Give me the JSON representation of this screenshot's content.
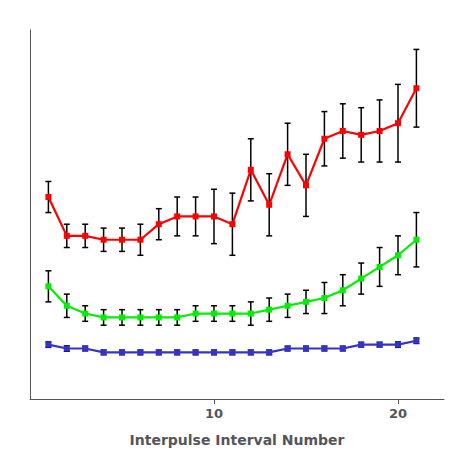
{
  "chart_data": {
    "type": "line",
    "xlabel": "Interpulse Interval Number",
    "x": [
      1,
      2,
      3,
      4,
      5,
      6,
      7,
      8,
      9,
      10,
      11,
      12,
      13,
      14,
      15,
      16,
      17,
      18,
      19,
      20,
      21
    ],
    "series": [
      {
        "color": "#ff0000",
        "values": [
          0.62,
          0.52,
          0.52,
          0.51,
          0.51,
          0.51,
          0.55,
          0.57,
          0.57,
          0.57,
          0.55,
          0.69,
          0.6,
          0.73,
          0.65,
          0.77,
          0.79,
          0.78,
          0.79,
          0.81,
          0.9
        ],
        "errors": [
          0.04,
          0.03,
          0.03,
          0.03,
          0.03,
          0.04,
          0.04,
          0.05,
          0.05,
          0.07,
          0.08,
          0.08,
          0.08,
          0.08,
          0.08,
          0.07,
          0.07,
          0.07,
          0.08,
          0.1,
          0.1
        ]
      },
      {
        "color": "#00ee00",
        "values": [
          0.39,
          0.34,
          0.32,
          0.31,
          0.31,
          0.31,
          0.31,
          0.31,
          0.32,
          0.32,
          0.32,
          0.32,
          0.33,
          0.34,
          0.35,
          0.36,
          0.38,
          0.41,
          0.44,
          0.47,
          0.51
        ],
        "errors": [
          0.04,
          0.03,
          0.02,
          0.02,
          0.02,
          0.02,
          0.02,
          0.02,
          0.02,
          0.02,
          0.02,
          0.03,
          0.03,
          0.03,
          0.03,
          0.04,
          0.04,
          0.04,
          0.05,
          0.05,
          0.07
        ]
      },
      {
        "color": "#3333cc",
        "values": [
          0.24,
          0.23,
          0.23,
          0.22,
          0.22,
          0.22,
          0.22,
          0.22,
          0.22,
          0.22,
          0.22,
          0.22,
          0.22,
          0.23,
          0.23,
          0.23,
          0.23,
          0.24,
          0.24,
          0.24,
          0.25
        ],
        "errors": [
          0.007,
          0.007,
          0.006,
          0.006,
          0.006,
          0.006,
          0.006,
          0.006,
          0.006,
          0.006,
          0.006,
          0.006,
          0.006,
          0.006,
          0.006,
          0.006,
          0.006,
          0.006,
          0.006,
          0.007,
          0.007
        ]
      }
    ],
    "error_bar_color": "#000000",
    "marker": "square",
    "xlim": [
      0,
      22.5
    ],
    "xticks": [
      10,
      20
    ],
    "ylim": [
      0.1,
      1.05
    ],
    "tick_labels": "x",
    "grid": false
  }
}
